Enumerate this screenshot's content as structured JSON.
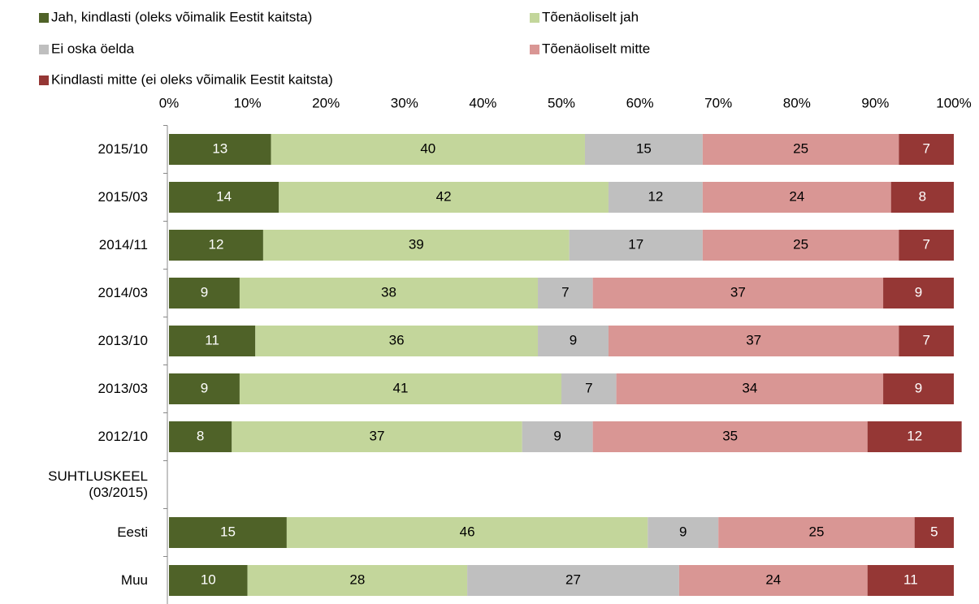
{
  "chart_data": {
    "type": "stacked_bar_horizontal",
    "categories": [
      "2015/10",
      "2015/03",
      "2014/11",
      "2014/03",
      "2013/10",
      "2013/03",
      "2012/10",
      "SUHTLUSKEEL\n(03/2015)",
      "Eesti",
      "Muu"
    ],
    "series": [
      {
        "name": "Jah, kindlasti (oleks võimalik Eestit kaitsta)",
        "color": "#4f6228",
        "values": [
          13,
          14,
          12,
          9,
          11,
          9,
          8,
          null,
          15,
          10
        ]
      },
      {
        "name": "Tõenäoliselt jah",
        "color": "#c3d69b",
        "values": [
          40,
          42,
          39,
          38,
          36,
          41,
          37,
          null,
          46,
          28
        ]
      },
      {
        "name": "Ei oska öelda",
        "color": "#bfbfbf",
        "values": [
          15,
          12,
          17,
          7,
          9,
          7,
          9,
          null,
          9,
          27
        ]
      },
      {
        "name": "Tõenäoliselt mitte",
        "color": "#d99694",
        "values": [
          25,
          24,
          25,
          37,
          37,
          34,
          35,
          null,
          25,
          24
        ]
      },
      {
        "name": "Kindlasti mitte (ei oleks võimalik Eestit kaitsta)",
        "color": "#953735",
        "values": [
          7,
          8,
          7,
          9,
          7,
          9,
          12,
          null,
          5,
          11
        ]
      }
    ],
    "xlim": [
      0,
      100
    ],
    "xticks": [
      {
        "value": 0,
        "label": "0%"
      },
      {
        "value": 10,
        "label": "10%"
      },
      {
        "value": 20,
        "label": "20%"
      },
      {
        "value": 30,
        "label": "30%"
      },
      {
        "value": 40,
        "label": "40%"
      },
      {
        "value": 50,
        "label": "50%"
      },
      {
        "value": 60,
        "label": "60%"
      },
      {
        "value": 70,
        "label": "70%"
      },
      {
        "value": 80,
        "label": "80%"
      },
      {
        "value": 90,
        "label": "90%"
      },
      {
        "value": 100,
        "label": "100%"
      }
    ]
  }
}
